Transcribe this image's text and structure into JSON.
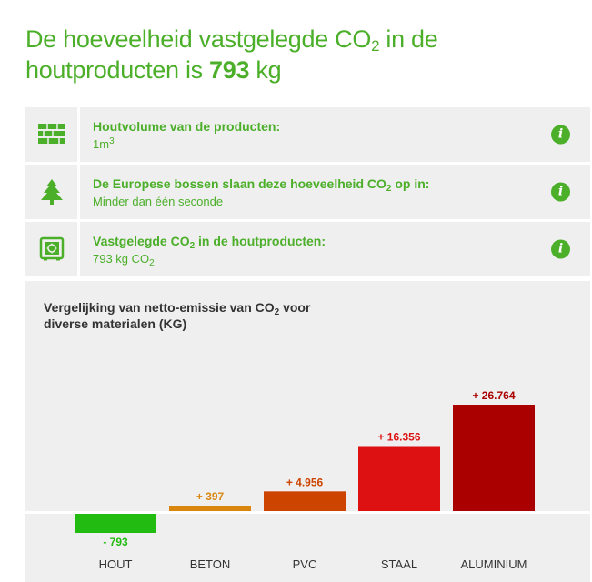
{
  "header": {
    "title_part1": "De hoeveelheid vastgelegde CO",
    "title_sub": "2",
    "title_part2": " in de houtproducten is ",
    "title_value": "793",
    "title_unit": " kg"
  },
  "rows": [
    {
      "icon": "stacked-planks-icon",
      "label": "Houtvolume van de producten:",
      "value": "1m",
      "value_sup": "3"
    },
    {
      "icon": "pine-tree-icon",
      "label_part1": "De Europese bossen slaan deze hoeveelheid CO",
      "label_sub": "2",
      "label_part2": " op in:",
      "value": "Minder dan één seconde"
    },
    {
      "icon": "storage-safe-icon",
      "label_part1": "Vastgelegde CO",
      "label_sub": "2",
      "label_part2": " in de houtproducten:",
      "value_part1": "793 kg CO",
      "value_sub": "2"
    }
  ],
  "info_icon": "info-icon",
  "chart": {
    "title_part1": "Vergelijking van netto-emissie van CO",
    "title_sub": "2",
    "title_part2": " voor diverse materialen (KG)"
  },
  "chart_data": {
    "type": "bar",
    "categories": [
      "HOUT",
      "BETON",
      "PVC",
      "STAAL",
      "ALUMINIUM"
    ],
    "values": [
      -793,
      397,
      4956,
      16356,
      26764
    ],
    "data_labels": [
      "- 793",
      "+ 397",
      "+ 4.956",
      "+ 16.356",
      "+ 26.764"
    ],
    "colors": [
      "#22bb11",
      "#d9860f",
      "#cc4400",
      "#dd1111",
      "#aa0000"
    ],
    "ylim": [
      -793,
      26764
    ],
    "grid": false,
    "legend": "none"
  }
}
